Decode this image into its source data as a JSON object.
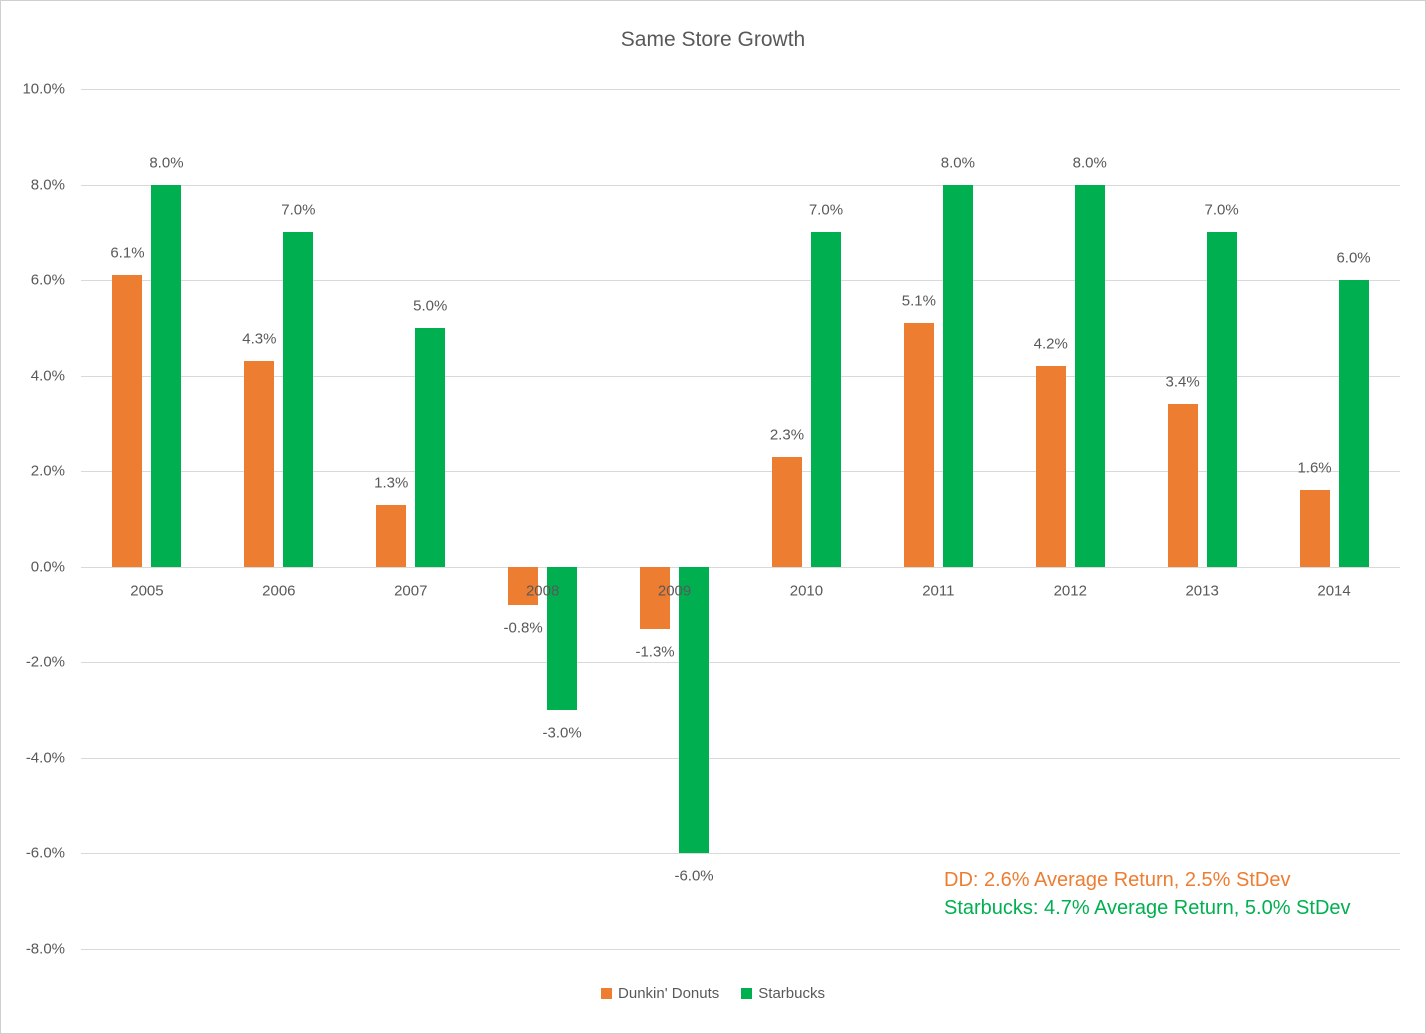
{
  "chart_data": {
    "type": "bar",
    "title": "Same Store Growth",
    "categories": [
      "2005",
      "2006",
      "2007",
      "2008",
      "2009",
      "2010",
      "2011",
      "2012",
      "2013",
      "2014"
    ],
    "series": [
      {
        "name": "Dunkin' Donuts",
        "color": "#ED7D31",
        "values": [
          6.1,
          4.3,
          1.3,
          -0.8,
          -1.3,
          2.3,
          5.1,
          4.2,
          3.4,
          1.6
        ],
        "labels": [
          "6.1%",
          "4.3%",
          "1.3%",
          "-0.8%",
          "-1.3%",
          "2.3%",
          "5.1%",
          "4.2%",
          "3.4%",
          "1.6%"
        ]
      },
      {
        "name": "Starbucks",
        "color": "#00B050",
        "values": [
          8.0,
          7.0,
          5.0,
          -3.0,
          -6.0,
          7.0,
          8.0,
          8.0,
          7.0,
          6.0
        ],
        "labels": [
          "8.0%",
          "7.0%",
          "5.0%",
          "-3.0%",
          "-6.0%",
          "7.0%",
          "8.0%",
          "8.0%",
          "7.0%",
          "6.0%"
        ]
      }
    ],
    "y_axis": {
      "min": -8,
      "max": 10,
      "step": 2,
      "tick_labels": [
        "10.0%",
        "8.0%",
        "6.0%",
        "4.0%",
        "2.0%",
        "0.0%",
        "-2.0%",
        "-4.0%",
        "-6.0%",
        "-8.0%"
      ]
    },
    "grid": true,
    "legend_position": "bottom"
  },
  "annotations": [
    {
      "text": "DD: 2.6% Average Return, 2.5% StDev",
      "color": "#ED7D31"
    },
    {
      "text": "Starbucks: 4.7% Average Return, 5.0% StDev",
      "color": "#00B050"
    }
  ],
  "colors": {
    "text": "#595959",
    "gridline": "#D9D9D9",
    "border": "#D0CECE",
    "background": "#FFFFFF"
  }
}
